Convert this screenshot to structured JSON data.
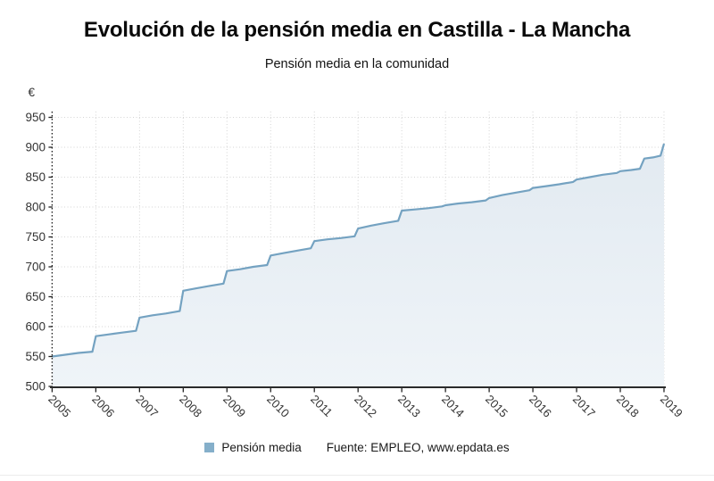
{
  "header": {
    "title": "Evolución de la pensión media en Castilla - La Mancha",
    "subtitle": "Pensión media en la comunidad"
  },
  "chart_data": {
    "type": "area",
    "title": "Evolución de la pensión media en Castilla - La Mancha",
    "subtitle": "Pensión media en la comunidad",
    "unit_label": "€",
    "xlabel": "",
    "ylabel": "€",
    "ylim": [
      500,
      950
    ],
    "y_ticks": [
      500,
      550,
      600,
      650,
      700,
      750,
      800,
      850,
      900,
      950
    ],
    "x_ticks": [
      "2005",
      "2006",
      "2007",
      "2008",
      "2009",
      "2010",
      "2011",
      "2012",
      "2013",
      "2014",
      "2015",
      "2016",
      "2017",
      "2018",
      "2019"
    ],
    "grid": true,
    "legend_position": "bottom",
    "series": [
      {
        "name": "Pensión media",
        "line_color": "#74a2c1",
        "points": [
          [
            2005.0,
            550
          ],
          [
            2005.3,
            553
          ],
          [
            2005.6,
            556
          ],
          [
            2005.92,
            558
          ],
          [
            2006.0,
            584
          ],
          [
            2006.3,
            587
          ],
          [
            2006.6,
            590
          ],
          [
            2006.92,
            593
          ],
          [
            2007.0,
            615
          ],
          [
            2007.3,
            619
          ],
          [
            2007.6,
            622
          ],
          [
            2007.92,
            626
          ],
          [
            2008.0,
            660
          ],
          [
            2008.3,
            664
          ],
          [
            2008.6,
            668
          ],
          [
            2008.92,
            672
          ],
          [
            2009.0,
            693
          ],
          [
            2009.3,
            696
          ],
          [
            2009.6,
            700
          ],
          [
            2009.92,
            703
          ],
          [
            2010.0,
            719
          ],
          [
            2010.3,
            723
          ],
          [
            2010.6,
            727
          ],
          [
            2010.92,
            731
          ],
          [
            2011.0,
            743
          ],
          [
            2011.3,
            746
          ],
          [
            2011.6,
            748
          ],
          [
            2011.92,
            751
          ],
          [
            2012.0,
            764
          ],
          [
            2012.3,
            769
          ],
          [
            2012.6,
            773
          ],
          [
            2012.92,
            777
          ],
          [
            2013.0,
            794
          ],
          [
            2013.3,
            796
          ],
          [
            2013.6,
            798
          ],
          [
            2013.92,
            801
          ],
          [
            2014.0,
            803
          ],
          [
            2014.3,
            806
          ],
          [
            2014.6,
            808
          ],
          [
            2014.92,
            811
          ],
          [
            2015.0,
            815
          ],
          [
            2015.3,
            820
          ],
          [
            2015.6,
            824
          ],
          [
            2015.92,
            828
          ],
          [
            2016.0,
            832
          ],
          [
            2016.3,
            835
          ],
          [
            2016.6,
            838
          ],
          [
            2016.92,
            842
          ],
          [
            2017.0,
            846
          ],
          [
            2017.3,
            850
          ],
          [
            2017.6,
            854
          ],
          [
            2017.92,
            857
          ],
          [
            2018.0,
            860
          ],
          [
            2018.25,
            862
          ],
          [
            2018.45,
            864
          ],
          [
            2018.55,
            881
          ],
          [
            2018.75,
            883
          ],
          [
            2018.92,
            886
          ],
          [
            2019.0,
            906
          ]
        ]
      }
    ],
    "colors": {
      "line": "#74a2c1",
      "area_top": "#e2eaf1",
      "area_bottom": "#eff4f8",
      "gridline": "#d5d5d5",
      "axis": "#2b2b2b",
      "tick_label": "#333333"
    }
  },
  "legend": {
    "label": "Pensión media",
    "swatch_color": "#85afca"
  },
  "footer": {
    "source": "Fuente: EMPLEO, www.epdata.es"
  }
}
